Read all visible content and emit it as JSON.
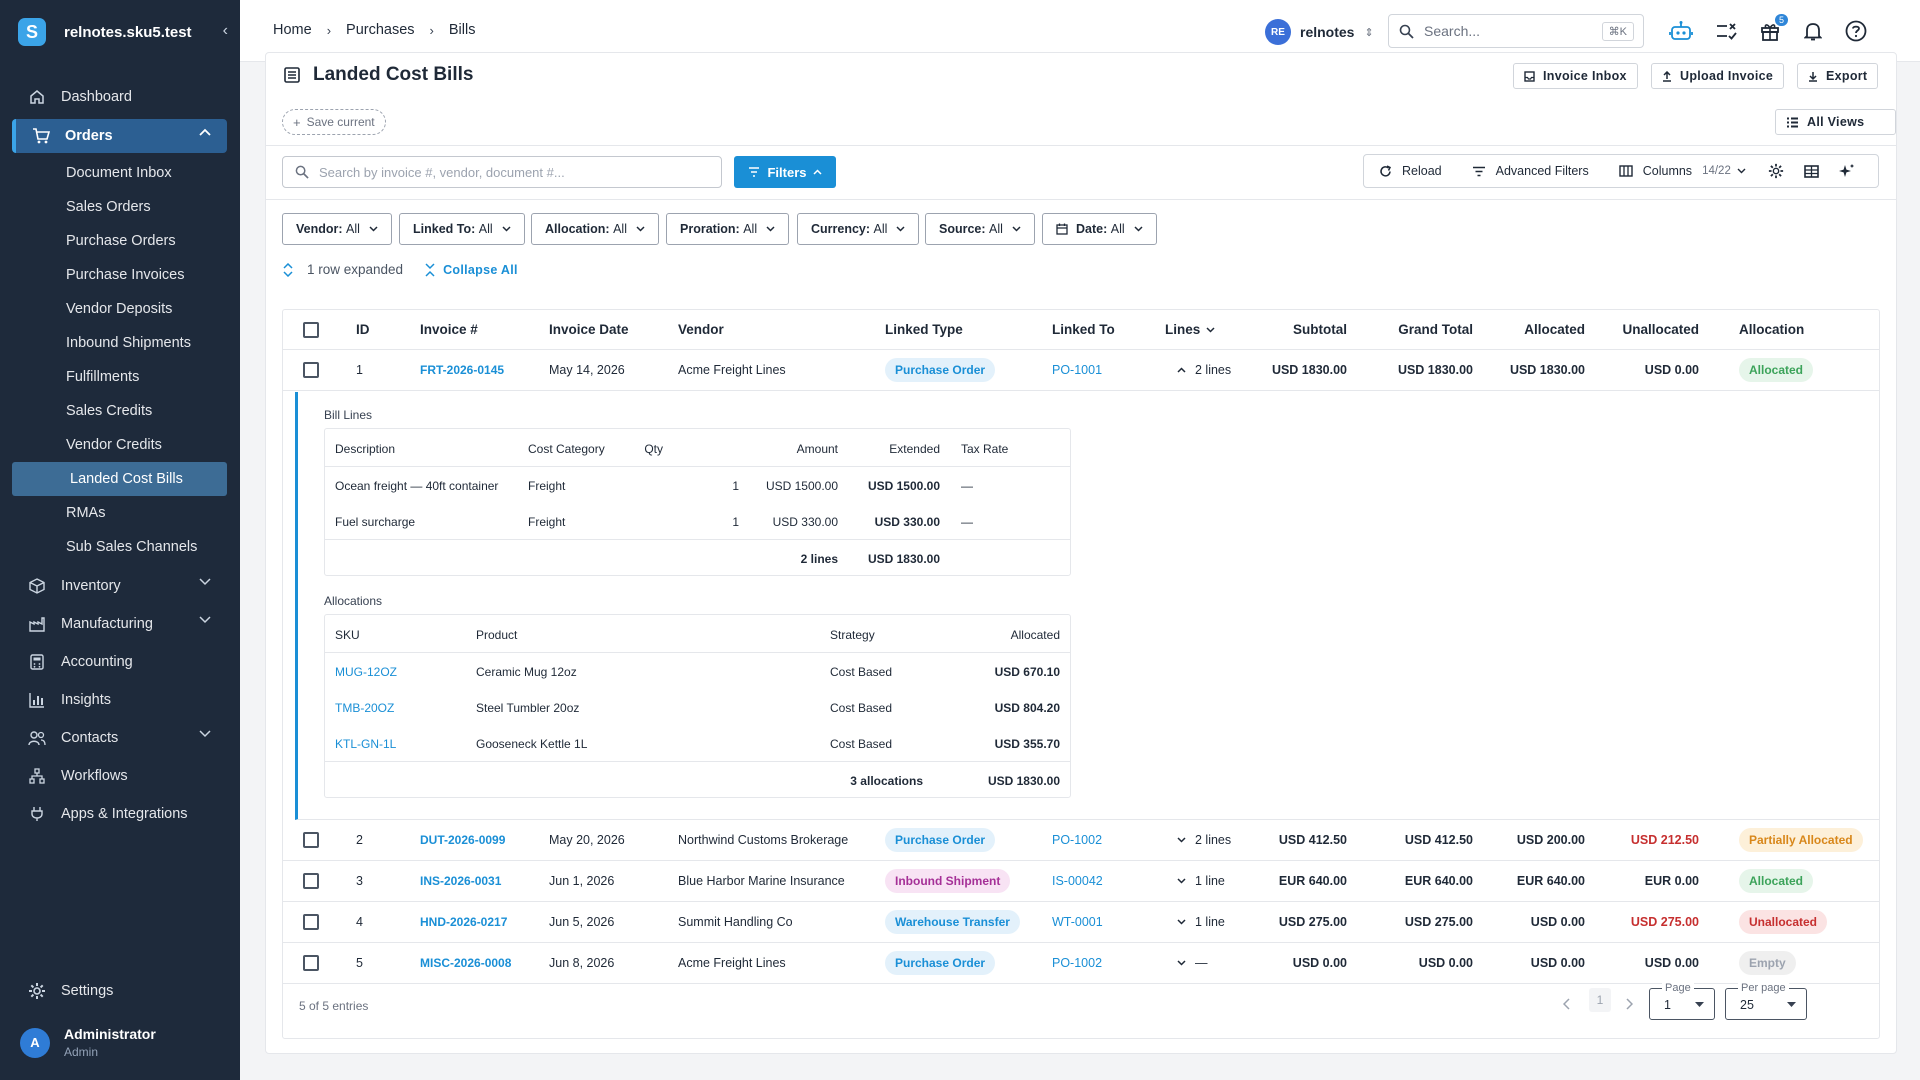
{
  "sidebar": {
    "brand": "relnotes.sku5.test",
    "brand_logo": "S",
    "items": [
      {
        "label": "Dashboard",
        "icon": "home-icon"
      },
      {
        "label": "Orders",
        "icon": "cart-icon"
      },
      {
        "label": "Inventory",
        "icon": "box-icon"
      },
      {
        "label": "Manufacturing",
        "icon": "factory-icon"
      },
      {
        "label": "Accounting",
        "icon": "calculator-icon"
      },
      {
        "label": "Insights",
        "icon": "chart-icon"
      },
      {
        "label": "Contacts",
        "icon": "users-icon"
      },
      {
        "label": "Workflows",
        "icon": "workflow-icon"
      },
      {
        "label": "Apps & Integrations",
        "icon": "plug-icon"
      }
    ],
    "orders_sub": [
      "Document Inbox",
      "Sales Orders",
      "Purchase Orders",
      "Purchase Invoices",
      "Vendor Deposits",
      "Inbound Shipments",
      "Fulfillments",
      "Sales Credits",
      "Vendor Credits",
      "Landed Cost Bills",
      "RMAs",
      "Sub Sales Channels"
    ],
    "active_sub": "Landed Cost Bills",
    "settings": "Settings",
    "user": {
      "initial": "A",
      "name": "Administrator",
      "role": "Admin"
    }
  },
  "topbar": {
    "breadcrumbs": [
      "Home",
      "Purchases",
      "Bills"
    ],
    "org": {
      "initials": "RE",
      "name": "relnotes"
    },
    "search_placeholder": "Search...",
    "search_shortcut": "⌘K",
    "gift_badge": "5"
  },
  "page": {
    "title": "Landed Cost Bills",
    "buttons": {
      "invoice_inbox": "Invoice Inbox",
      "upload_invoice": "Upload Invoice",
      "export": "Export"
    },
    "save_current": "Save current",
    "all_views": "All Views",
    "search_placeholder": "Search by invoice #, vendor, document #...",
    "filters": "Filters",
    "toolbar": {
      "reload": "Reload",
      "advanced_filters": "Advanced Filters",
      "columns": "Columns",
      "columns_count": "14/22"
    },
    "chips": [
      {
        "label": "Vendor:",
        "value": "All"
      },
      {
        "label": "Linked To:",
        "value": "All"
      },
      {
        "label": "Allocation:",
        "value": "All"
      },
      {
        "label": "Proration:",
        "value": "All"
      },
      {
        "label": "Currency:",
        "value": "All"
      },
      {
        "label": "Source:",
        "value": "All"
      },
      {
        "label": "Date:",
        "value": "All"
      }
    ],
    "expanded_text": "1 row expanded",
    "collapse_all": "Collapse All"
  },
  "table": {
    "headers": {
      "id": "ID",
      "invoice": "Invoice #",
      "date": "Invoice Date",
      "vendor": "Vendor",
      "linked_type": "Linked Type",
      "linked_to": "Linked To",
      "lines": "Lines",
      "subtotal": "Subtotal",
      "grand_total": "Grand Total",
      "allocated": "Allocated",
      "unallocated": "Unallocated",
      "allocation": "Allocation"
    },
    "rows": [
      {
        "id": "1",
        "invoice": "FRT-2026-0145",
        "date": "May 14, 2026",
        "vendor": "Acme Freight Lines",
        "linked_type": "Purchase Order",
        "type_class": "po",
        "linked_to": "PO-1001",
        "lines": "2 lines",
        "subtotal": "USD 1830.00",
        "grand_total": "USD 1830.00",
        "allocated": "USD 1830.00",
        "unallocated": "USD 0.00",
        "status": "Allocated",
        "status_class": "allocated"
      },
      {
        "id": "2",
        "invoice": "DUT-2026-0099",
        "date": "May 20, 2026",
        "vendor": "Northwind Customs Brokerage",
        "linked_type": "Purchase Order",
        "type_class": "po",
        "linked_to": "PO-1002",
        "lines": "2 lines",
        "subtotal": "USD 412.50",
        "grand_total": "USD 412.50",
        "allocated": "USD 200.00",
        "unallocated": "USD 212.50",
        "status": "Partially Allocated",
        "status_class": "partial"
      },
      {
        "id": "3",
        "invoice": "INS-2026-0031",
        "date": "Jun 1, 2026",
        "vendor": "Blue Harbor Marine Insurance",
        "linked_type": "Inbound Shipment",
        "type_class": "ib",
        "linked_to": "IS-00042",
        "lines": "1 line",
        "subtotal": "EUR 640.00",
        "grand_total": "EUR 640.00",
        "allocated": "EUR 640.00",
        "unallocated": "EUR 0.00",
        "status": "Allocated",
        "status_class": "allocated"
      },
      {
        "id": "4",
        "invoice": "HND-2026-0217",
        "date": "Jun 5, 2026",
        "vendor": "Summit Handling Co",
        "linked_type": "Warehouse Transfer",
        "type_class": "wt",
        "linked_to": "WT-0001",
        "lines": "1 line",
        "subtotal": "USD 275.00",
        "grand_total": "USD 275.00",
        "allocated": "USD 0.00",
        "unallocated": "USD 275.00",
        "status": "Unallocated",
        "status_class": "unalloc"
      },
      {
        "id": "5",
        "invoice": "MISC-2026-0008",
        "date": "Jun 8, 2026",
        "vendor": "Acme Freight Lines",
        "linked_type": "Purchase Order",
        "type_class": "po",
        "linked_to": "PO-1002",
        "lines": "—",
        "subtotal": "USD 0.00",
        "grand_total": "USD 0.00",
        "allocated": "USD 0.00",
        "unallocated": "USD 0.00",
        "status": "Empty",
        "status_class": "empty"
      }
    ],
    "detail": {
      "bill_lines_label": "Bill Lines",
      "bill_headers": {
        "description": "Description",
        "category": "Cost Category",
        "qty": "Qty",
        "amount": "Amount",
        "extended": "Extended",
        "tax": "Tax Rate"
      },
      "bill_lines": [
        {
          "description": "Ocean freight — 40ft container",
          "category": "Freight",
          "qty": "1",
          "amount": "USD 1500.00",
          "extended": "USD 1500.00",
          "tax": "—"
        },
        {
          "description": "Fuel surcharge",
          "category": "Freight",
          "qty": "1",
          "amount": "USD 330.00",
          "extended": "USD 330.00",
          "tax": "—"
        }
      ],
      "bill_footer": {
        "count": "2 lines",
        "total": "USD 1830.00"
      },
      "alloc_label": "Allocations",
      "alloc_headers": {
        "sku": "SKU",
        "product": "Product",
        "strategy": "Strategy",
        "allocated": "Allocated"
      },
      "allocations": [
        {
          "sku": "MUG-12OZ",
          "product": "Ceramic Mug 12oz",
          "strategy": "Cost Based",
          "allocated": "USD 670.10"
        },
        {
          "sku": "TMB-20OZ",
          "product": "Steel Tumbler 20oz",
          "strategy": "Cost Based",
          "allocated": "USD 804.20"
        },
        {
          "sku": "KTL-GN-1L",
          "product": "Gooseneck Kettle 1L",
          "strategy": "Cost Based",
          "allocated": "USD 355.70"
        }
      ],
      "alloc_footer": {
        "count": "3 allocations",
        "total": "USD 1830.00"
      }
    },
    "footer": {
      "entries": "5 of 5 entries",
      "current_page": "1",
      "page_label": "Page",
      "page_value": "1",
      "per_page_label": "Per page",
      "per_page_value": "25"
    }
  }
}
